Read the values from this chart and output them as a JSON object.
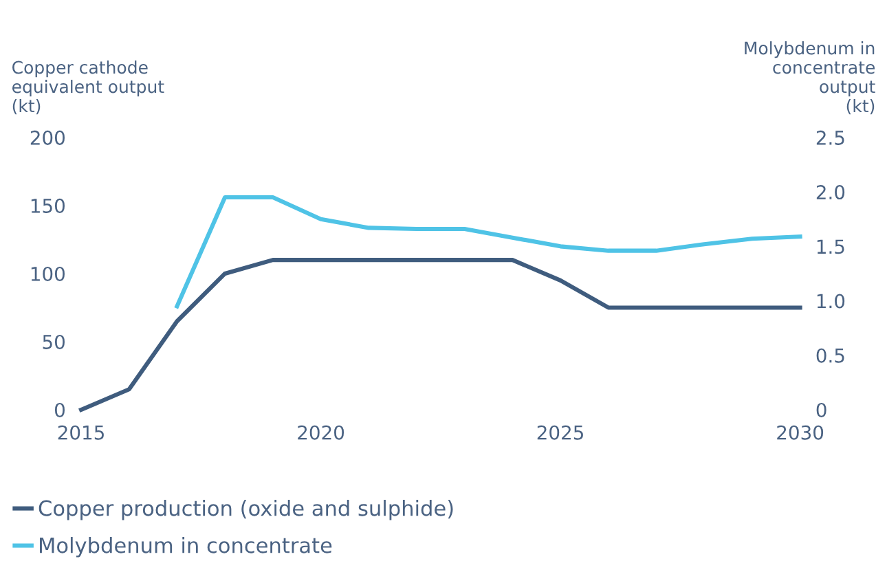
{
  "chart_data": {
    "type": "line",
    "ylabel": "Copper cathode\nequivalent output\n(kt)",
    "y2label": "Molybdenum in\nconcentrate\noutput\n(kt)",
    "x": [
      2015,
      2016,
      2017,
      2018,
      2019,
      2020,
      2021,
      2022,
      2023,
      2024,
      2025,
      2026,
      2027,
      2028,
      2029,
      2030
    ],
    "series": [
      {
        "name": "Copper production (oxide and sulphide)",
        "color": "#3f5c7e",
        "values": [
          0,
          15,
          65,
          100,
          110,
          110,
          110,
          110,
          110,
          110,
          95,
          75,
          75,
          75,
          75,
          75
        ]
      },
      {
        "name": "Molybdenum in concentrate",
        "color": "#4fc3e6",
        "axis": "y2",
        "values": [
          null,
          null,
          0.95,
          1.95,
          1.95,
          1.75,
          1.67,
          1.66,
          1.66,
          1.58,
          1.5,
          1.46,
          1.46,
          1.52,
          1.57,
          1.59
        ]
      }
    ],
    "xlim": [
      2015,
      2030
    ],
    "xticks": [
      2015,
      2020,
      2025,
      2030
    ],
    "ylim": [
      0,
      200
    ],
    "yticks": [
      0,
      50,
      100,
      150,
      200
    ],
    "y2lim": [
      0,
      2.5
    ],
    "y2ticks": [
      {
        "value": 0,
        "label": "0"
      },
      {
        "value": 0.5,
        "label": "0.5"
      },
      {
        "value": 1.0,
        "label": "1.0"
      },
      {
        "value": 1.5,
        "label": "1.5"
      },
      {
        "value": 2.0,
        "label": "2.0"
      },
      {
        "value": 2.5,
        "label": "2.5"
      }
    ],
    "grid": false,
    "legend": "bottom left",
    "marker": "none",
    "line_style": "solid"
  }
}
